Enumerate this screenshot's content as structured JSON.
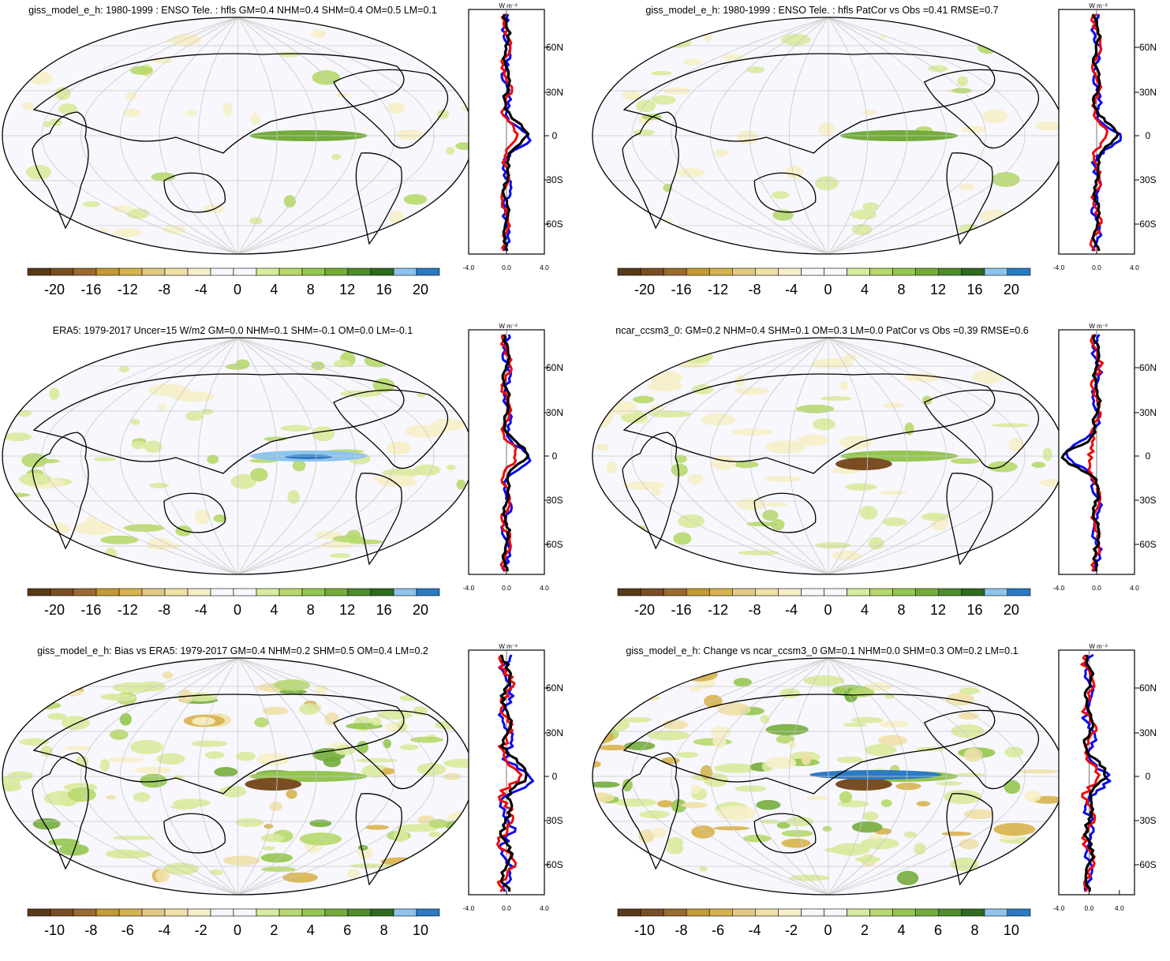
{
  "colors": {
    "palette": [
      "#5a3a18",
      "#7a4e22",
      "#9a6a30",
      "#c49a34",
      "#d7b24e",
      "#e3c984",
      "#efe0a8",
      "#f6eec8",
      "#f7f7fd",
      "#f7f7fd",
      "#d8ea9c",
      "#b6d86c",
      "#94c650",
      "#74ac3c",
      "#4e8c2c",
      "#2e6a20",
      "#8cc4ee",
      "#2a7ac4"
    ],
    "ocean": "#f7f7fd",
    "obs_line": "#0a0aee",
    "model_line": "#ee0a0a",
    "diff_line": "#000000"
  },
  "profile": {
    "unit": "W m⁻²",
    "lat_labels": [
      "60N",
      "30N",
      "0",
      "30S",
      "60S"
    ]
  },
  "chart_data": [
    {
      "type": "heatmap",
      "title": "giss_model_e_h: 1980-1999 : ENSO Tele. : hfls GM=0.4 NHM=0.4 SHM=0.4 OM=0.5 LM=0.1",
      "colorbar_ticks": [
        "-20",
        "-16",
        "-12",
        "-8",
        "-4",
        "0",
        "4",
        "8",
        "12",
        "16",
        "20"
      ],
      "profile_xticks": [
        "-4.0",
        "0.0",
        "4.0"
      ],
      "profile_xlim": [
        -4,
        4
      ]
    },
    {
      "type": "heatmap",
      "title": "giss_model_e_h: 1980-1999 : ENSO Tele. : hfls PatCor vs Obs =0.41 RMSE=0.7",
      "colorbar_ticks": [
        "-20",
        "-16",
        "-12",
        "-8",
        "-4",
        "0",
        "4",
        "8",
        "12",
        "16",
        "20"
      ],
      "profile_xticks": [
        "-4.0",
        "0.0",
        "4.0"
      ],
      "profile_xlim": [
        -4,
        4
      ]
    },
    {
      "type": "heatmap",
      "title": "ERA5: 1979-2017 Uncer=15 W/m2 GM=0.0 NHM=0.1 SHM=-0.1 OM=0.0 LM=-0.1",
      "colorbar_ticks": [
        "-20",
        "-16",
        "-12",
        "-8",
        "-4",
        "0",
        "4",
        "8",
        "12",
        "16",
        "20"
      ],
      "profile_xticks": [
        "-4.0",
        "0.0",
        "4.0"
      ],
      "profile_xlim": [
        -4,
        4
      ]
    },
    {
      "type": "heatmap",
      "title": "ncar_ccsm3_0: GM=0.2 NHM=0.4 SHM=0.1 OM=0.3 LM=0.0 PatCor vs Obs =0.39 RMSE=0.6",
      "colorbar_ticks": [
        "-20",
        "-16",
        "-12",
        "-8",
        "-4",
        "0",
        "4",
        "8",
        "12",
        "16",
        "20"
      ],
      "profile_xticks": [
        "-4.0",
        "0.0",
        "4.0"
      ],
      "profile_xlim": [
        -4,
        4
      ]
    },
    {
      "type": "heatmap",
      "title": "giss_model_e_h: Bias vs ERA5: 1979-2017 GM=0.4 NHM=0.2 SHM=0.5 OM=0.4 LM=0.2",
      "colorbar_ticks": [
        "-10",
        "-8",
        "-6",
        "-4",
        "-2",
        "0",
        "2",
        "4",
        "6",
        "8",
        "10"
      ],
      "profile_xticks": [
        "-4.0",
        "0.0",
        "4.0"
      ],
      "profile_xlim": [
        -4,
        4
      ]
    },
    {
      "type": "heatmap",
      "title": "giss_model_e_h: Change vs ncar_ccsm3_0 GM=0.1 NHM=0.0 SHM=0.3 OM=0.2 LM=0.1",
      "colorbar_ticks": [
        "-10",
        "-8",
        "-6",
        "-4",
        "-2",
        "0",
        "2",
        "4",
        "6",
        "8",
        "10"
      ],
      "profile_xticks": [
        "-4.0",
        "0.0",
        "4.0"
      ],
      "profile_xlim": [
        -4,
        6
      ]
    }
  ]
}
